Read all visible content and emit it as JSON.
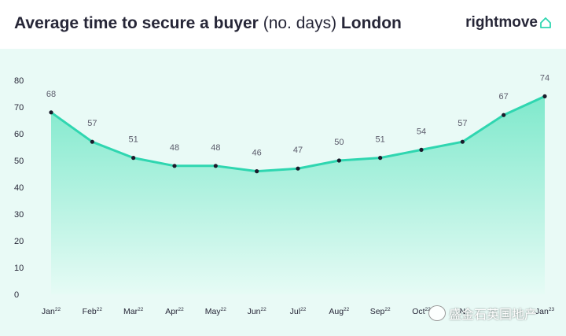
{
  "title": {
    "bold_part": "Average time to secure a buyer",
    "normal_part": "(no. days)",
    "bold_suffix": "London"
  },
  "brand": {
    "name": "rightmove",
    "icon": "house-outline-icon"
  },
  "watermark": {
    "text": "盛金石英国地产",
    "icon": "wechat-icon"
  },
  "colors": {
    "line": "#2fd6b0",
    "area_top": "#7fe9cc",
    "area_bottom": "#e6fbf5",
    "background": "#e9faf6",
    "text": "#262637",
    "label": "#5a5a6a",
    "accent": "#2fd6b0"
  },
  "chart_data": {
    "type": "area",
    "categories": [
      "Jan22",
      "Feb22",
      "Mar22",
      "Apr22",
      "May22",
      "Jun22",
      "Jul22",
      "Aug22",
      "Sep22",
      "Oct22",
      "Nov22",
      "Dec22",
      "Jan23"
    ],
    "tick_labels": [
      {
        "main": "Jan",
        "sup": "22"
      },
      {
        "main": "Feb",
        "sup": "22"
      },
      {
        "main": "Mar",
        "sup": "22"
      },
      {
        "main": "Apr",
        "sup": "22"
      },
      {
        "main": "May",
        "sup": "22"
      },
      {
        "main": "Jun",
        "sup": "22"
      },
      {
        "main": "Jul",
        "sup": "22"
      },
      {
        "main": "Aug",
        "sup": "22"
      },
      {
        "main": "Sep",
        "sup": "22"
      },
      {
        "main": "Oct",
        "sup": "22"
      },
      {
        "main": "N",
        "sup": ""
      },
      {
        "main": "",
        "sup": ""
      },
      {
        "main": "Jan",
        "sup": "23"
      }
    ],
    "values": [
      68,
      57,
      51,
      48,
      48,
      46,
      47,
      50,
      51,
      54,
      57,
      67,
      74
    ],
    "ylim": [
      0,
      80
    ],
    "yticks": [
      0,
      10,
      20,
      30,
      40,
      50,
      60,
      70,
      80
    ],
    "grid": false,
    "legend": "none",
    "data_labels": true
  }
}
